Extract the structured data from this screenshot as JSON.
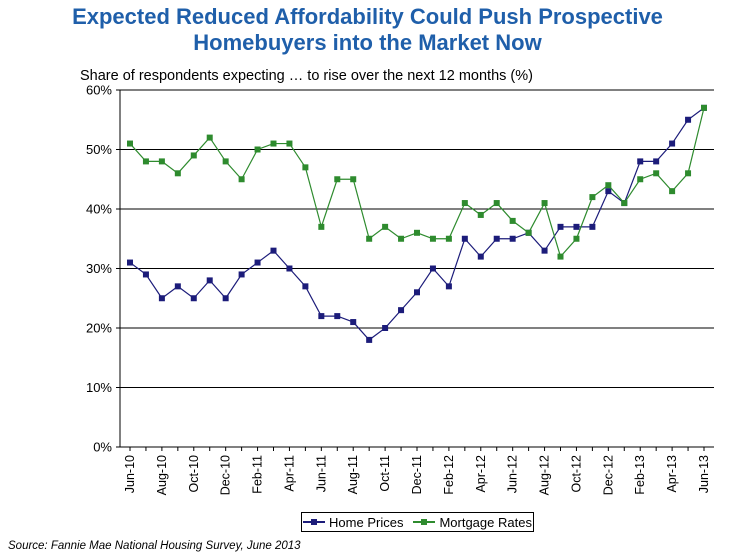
{
  "chart_data": {
    "type": "line",
    "title": "Expected Reduced Affordability Could Push Prospective Homebuyers into the Market Now",
    "title_lines": [
      "Expected Reduced Affordability Could Push Prospective",
      "Homebuyers into the Market Now"
    ],
    "subtitle": "Share of respondents expecting … to rise over the next 12 months (%)",
    "xlabel": "",
    "ylabel": "",
    "ylim": [
      0,
      60
    ],
    "yticks": [
      0,
      10,
      20,
      30,
      40,
      50,
      60
    ],
    "ytick_labels": [
      "0%",
      "10%",
      "20%",
      "30%",
      "40%",
      "50%",
      "60%"
    ],
    "gridlines": true,
    "legend_position": "bottom-center",
    "x_count": 37,
    "x_tick_labels": [
      {
        "index": 0,
        "label": "Jun-10"
      },
      {
        "index": 2,
        "label": "Aug-10"
      },
      {
        "index": 4,
        "label": "Oct-10"
      },
      {
        "index": 6,
        "label": "Dec-10"
      },
      {
        "index": 8,
        "label": "Feb-11"
      },
      {
        "index": 10,
        "label": "Apr-11"
      },
      {
        "index": 12,
        "label": "Jun-11"
      },
      {
        "index": 14,
        "label": "Aug-11"
      },
      {
        "index": 16,
        "label": "Oct-11"
      },
      {
        "index": 18,
        "label": "Dec-11"
      },
      {
        "index": 20,
        "label": "Feb-12"
      },
      {
        "index": 22,
        "label": "Apr-12"
      },
      {
        "index": 24,
        "label": "Jun-12"
      },
      {
        "index": 26,
        "label": "Aug-12"
      },
      {
        "index": 28,
        "label": "Oct-12"
      },
      {
        "index": 30,
        "label": "Dec-12"
      },
      {
        "index": 32,
        "label": "Feb-13"
      },
      {
        "index": 34,
        "label": "Apr-13"
      },
      {
        "index": 36,
        "label": "Jun-13"
      }
    ],
    "series": [
      {
        "name": "Home Prices",
        "color": "#1C1C7A",
        "marker": "square",
        "values": [
          31,
          29,
          25,
          27,
          25,
          28,
          25,
          29,
          31,
          33,
          30,
          27,
          22,
          22,
          21,
          18,
          20,
          23,
          26,
          30,
          27,
          35,
          32,
          35,
          35,
          36,
          33,
          37,
          37,
          37,
          43,
          41,
          48,
          48,
          51,
          55,
          57
        ]
      },
      {
        "name": "Mortgage Rates",
        "color": "#2E8B2E",
        "marker": "square",
        "values": [
          51,
          48,
          48,
          46,
          49,
          52,
          48,
          45,
          50,
          51,
          51,
          47,
          37,
          45,
          45,
          35,
          37,
          35,
          36,
          35,
          35,
          41,
          39,
          41,
          38,
          36,
          41,
          32,
          35,
          42,
          44,
          41,
          45,
          46,
          43,
          46,
          57
        ]
      }
    ]
  },
  "source": "Source: Fannie Mae National Housing Survey, June 2013"
}
